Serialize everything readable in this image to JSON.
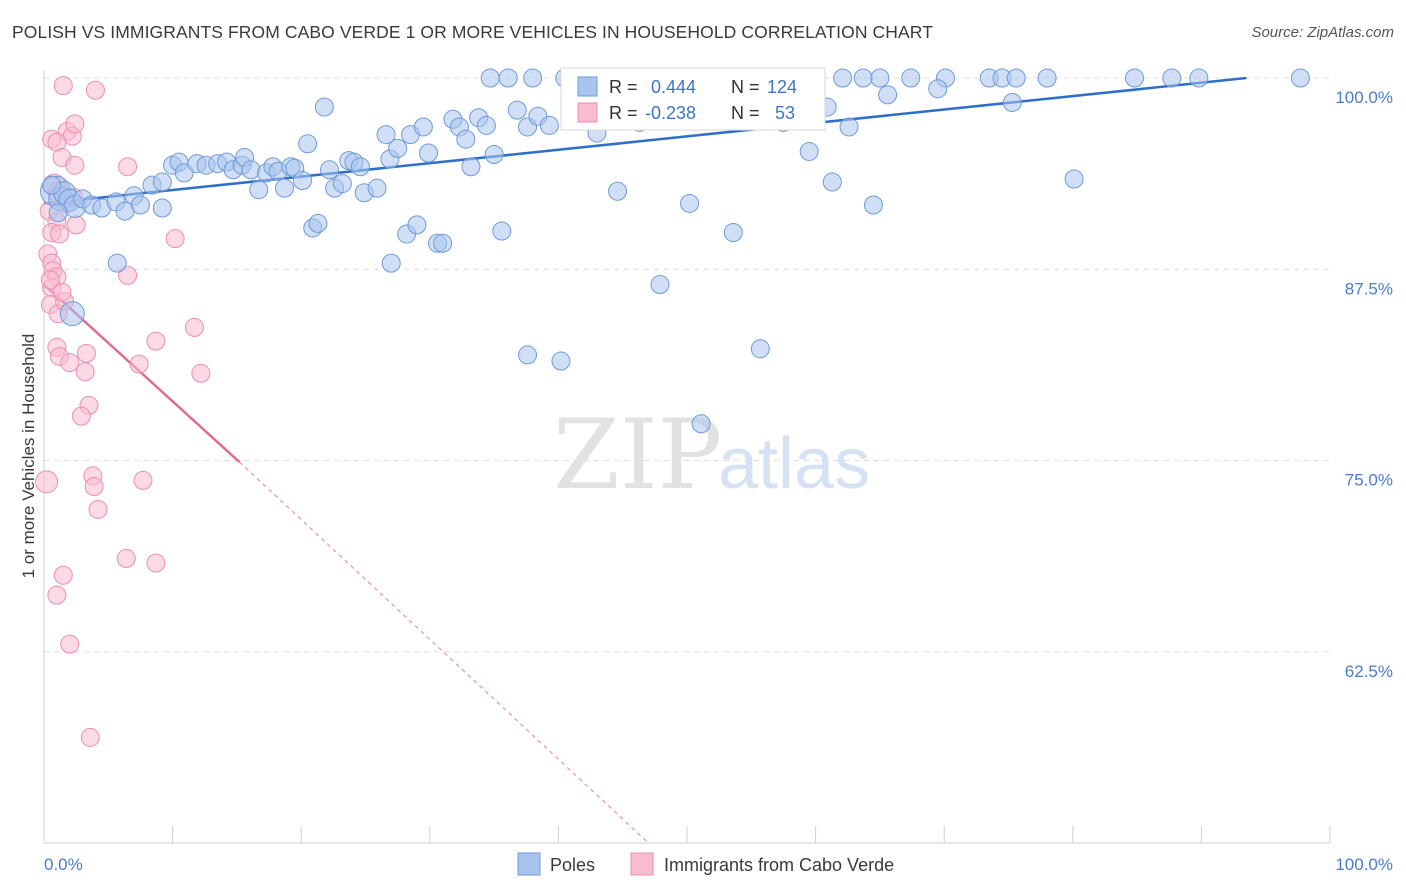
{
  "title": "POLISH VS IMMIGRANTS FROM CABO VERDE 1 OR MORE VEHICLES IN HOUSEHOLD CORRELATION CHART",
  "source": "Source: ZipAtlas.com",
  "watermark": {
    "zip": "ZIP",
    "atlas": "atlas"
  },
  "colors": {
    "blue_fill": "#a9c5ee",
    "blue_stroke": "#6f9ad8",
    "blue_line": "#2f6fcb",
    "pink_fill": "#f7bccf",
    "pink_stroke": "#eb8fae",
    "pink_line": "#e06b96",
    "grid": "#dcdcdc",
    "tick_text": "#4a7cc9"
  },
  "legend_stats": [
    {
      "r_label": "R =",
      "r_value": "0.444",
      "n_label": "N =",
      "n_value": "124"
    },
    {
      "r_label": "R =",
      "r_value": "-0.238",
      "n_label": "N =",
      "n_value": "53"
    }
  ],
  "chart_data": {
    "type": "scatter",
    "ylabel": "1 or more Vehicles in Household",
    "xlim": [
      0,
      100
    ],
    "ylim": [
      50,
      100
    ],
    "x_tick_labels": [
      "0.0%",
      "100.0%"
    ],
    "y_ticks": [
      62.5,
      75.0,
      87.5,
      100.0
    ],
    "y_tick_labels": [
      "62.5%",
      "75.0%",
      "87.5%",
      "100.0%"
    ],
    "grid": "horizontal dashed",
    "legend": "bottom-center",
    "series": [
      {
        "name": "Poles",
        "trend": {
          "x": [
            0,
            93.5
          ],
          "y": [
            91.8,
            100.0
          ]
        },
        "points": [
          [
            0.9,
            92.6,
            5
          ],
          [
            1.3,
            92.1,
            4
          ],
          [
            1.6,
            92.5,
            3
          ],
          [
            2.0,
            92.0,
            3
          ],
          [
            2.4,
            91.6,
            3
          ],
          [
            3.0,
            92.1,
            2
          ],
          [
            3.7,
            91.7,
            2
          ],
          [
            4.5,
            91.5,
            2
          ],
          [
            5.6,
            91.9,
            2
          ],
          [
            6.3,
            91.3,
            2
          ],
          [
            7.0,
            92.3,
            2
          ],
          [
            7.5,
            91.7,
            2
          ],
          [
            8.4,
            93.0,
            2
          ],
          [
            9.2,
            91.5,
            2
          ],
          [
            9.2,
            93.2,
            2
          ],
          [
            10.0,
            94.3,
            2
          ],
          [
            10.5,
            94.5,
            2
          ],
          [
            10.9,
            93.8,
            2
          ],
          [
            11.9,
            94.4,
            2
          ],
          [
            12.6,
            94.3,
            2
          ],
          [
            13.5,
            94.4,
            2
          ],
          [
            14.2,
            94.5,
            2
          ],
          [
            14.7,
            94.0,
            2
          ],
          [
            15.4,
            94.3,
            2
          ],
          [
            15.6,
            94.8,
            2
          ],
          [
            16.1,
            94.0,
            2
          ],
          [
            16.7,
            92.7,
            2
          ],
          [
            17.3,
            93.8,
            2
          ],
          [
            17.8,
            94.2,
            2
          ],
          [
            18.2,
            93.9,
            2
          ],
          [
            18.7,
            92.8,
            2
          ],
          [
            19.2,
            94.2,
            2
          ],
          [
            19.5,
            94.1,
            2
          ],
          [
            20.1,
            93.3,
            2
          ],
          [
            20.5,
            95.7,
            2
          ],
          [
            20.9,
            90.2,
            2
          ],
          [
            21.3,
            90.5,
            2
          ],
          [
            21.8,
            98.1,
            2
          ],
          [
            22.2,
            94.0,
            2
          ],
          [
            22.6,
            92.8,
            2
          ],
          [
            23.2,
            93.1,
            2
          ],
          [
            23.7,
            94.6,
            2
          ],
          [
            24.1,
            94.5,
            2
          ],
          [
            24.6,
            94.2,
            2
          ],
          [
            24.9,
            92.5,
            2
          ],
          [
            25.9,
            92.8,
            2
          ],
          [
            26.6,
            96.3,
            2
          ],
          [
            26.9,
            94.7,
            2
          ],
          [
            27.5,
            95.4,
            2
          ],
          [
            28.2,
            89.8,
            2
          ],
          [
            28.5,
            96.3,
            2
          ],
          [
            29.0,
            90.4,
            2
          ],
          [
            29.5,
            96.8,
            2
          ],
          [
            29.9,
            95.1,
            2
          ],
          [
            30.6,
            89.2,
            2
          ],
          [
            31.0,
            89.2,
            2
          ],
          [
            31.8,
            97.3,
            2
          ],
          [
            32.3,
            96.8,
            2
          ],
          [
            32.8,
            96.0,
            2
          ],
          [
            33.2,
            94.2,
            2
          ],
          [
            33.8,
            97.4,
            2
          ],
          [
            34.4,
            96.9,
            2
          ],
          [
            35.0,
            95.0,
            2
          ],
          [
            35.6,
            90.0,
            2
          ],
          [
            36.8,
            97.9,
            2
          ],
          [
            37.6,
            96.8,
            2
          ],
          [
            38.4,
            97.5,
            2
          ],
          [
            27.0,
            87.9,
            2
          ],
          [
            34.7,
            100.0,
            2
          ],
          [
            36.1,
            100.0,
            2
          ],
          [
            38.0,
            100.0,
            2
          ],
          [
            40.5,
            100.0,
            2
          ],
          [
            42.2,
            100.0,
            2
          ],
          [
            44.1,
            100.0,
            2
          ],
          [
            46.3,
            100.0,
            2
          ],
          [
            48.1,
            100.0,
            2
          ],
          [
            50.3,
            100.0,
            2
          ],
          [
            52.4,
            100.0,
            2
          ],
          [
            54.7,
            100.0,
            2
          ],
          [
            56.8,
            100.0,
            2
          ],
          [
            58.4,
            100.0,
            2
          ],
          [
            62.1,
            100.0,
            2
          ],
          [
            63.7,
            100.0,
            2
          ],
          [
            65.0,
            100.0,
            2
          ],
          [
            67.4,
            100.0,
            2
          ],
          [
            70.1,
            100.0,
            2
          ],
          [
            73.5,
            100.0,
            2
          ],
          [
            74.5,
            100.0,
            2
          ],
          [
            75.6,
            100.0,
            2
          ],
          [
            78.0,
            100.0,
            2
          ],
          [
            84.8,
            100.0,
            2
          ],
          [
            87.7,
            100.0,
            2
          ],
          [
            89.8,
            100.0,
            2
          ],
          [
            97.7,
            100.0,
            2
          ],
          [
            50.6,
            97.7,
            2
          ],
          [
            53.7,
            98.3,
            2
          ],
          [
            56.7,
            98.6,
            2
          ],
          [
            60.9,
            98.1,
            2
          ],
          [
            62.6,
            96.8,
            2
          ],
          [
            65.6,
            98.9,
            2
          ],
          [
            75.3,
            98.4,
            2
          ],
          [
            46.3,
            97.1,
            2
          ],
          [
            59.5,
            95.2,
            2
          ],
          [
            44.6,
            92.6,
            2
          ],
          [
            50.2,
            91.8,
            2
          ],
          [
            53.6,
            89.9,
            2
          ],
          [
            61.3,
            93.2,
            2
          ],
          [
            64.5,
            91.7,
            2
          ],
          [
            80.1,
            93.4,
            2
          ],
          [
            39.3,
            96.9,
            2
          ],
          [
            47.9,
            86.5,
            2
          ],
          [
            37.6,
            81.9,
            2
          ],
          [
            40.2,
            81.5,
            2
          ],
          [
            55.7,
            82.3,
            2
          ],
          [
            51.1,
            77.4,
            2
          ],
          [
            5.7,
            87.9,
            2
          ],
          [
            2.2,
            84.6,
            4
          ],
          [
            0.6,
            93.0,
            2
          ],
          [
            1.1,
            91.2,
            2
          ],
          [
            42.2,
            97.6,
            2
          ],
          [
            57.5,
            97.1,
            2
          ],
          [
            43.0,
            96.4,
            2
          ],
          [
            48.8,
            98.7,
            2
          ],
          [
            69.5,
            99.3,
            2
          ]
        ]
      },
      {
        "name": "Immigrants from Cabo Verde",
        "trend": {
          "x": [
            0,
            15.2
          ],
          "y": [
            86.5,
            74.9
          ]
        },
        "trend_dashed": {
          "x": [
            15.2,
            47.0
          ],
          "y": [
            74.9,
            50.0
          ]
        },
        "points": [
          [
            1.5,
            99.5,
            2
          ],
          [
            4.0,
            99.2,
            2
          ],
          [
            1.8,
            96.5,
            2
          ],
          [
            2.2,
            96.2,
            2
          ],
          [
            2.4,
            97.0,
            2
          ],
          [
            0.6,
            96.0,
            2
          ],
          [
            1.0,
            95.8,
            2
          ],
          [
            1.4,
            94.8,
            2
          ],
          [
            2.4,
            94.3,
            2
          ],
          [
            6.5,
            94.2,
            2
          ],
          [
            0.8,
            93.0,
            3
          ],
          [
            1.2,
            92.5,
            3
          ],
          [
            1.7,
            91.9,
            3
          ],
          [
            2.3,
            92.2,
            2
          ],
          [
            0.4,
            91.3,
            2
          ],
          [
            1.0,
            90.6,
            2
          ],
          [
            2.5,
            90.4,
            2
          ],
          [
            0.6,
            89.9,
            2
          ],
          [
            1.2,
            89.8,
            2
          ],
          [
            10.2,
            89.5,
            2
          ],
          [
            0.3,
            88.5,
            2
          ],
          [
            0.6,
            87.9,
            2
          ],
          [
            0.7,
            87.4,
            2
          ],
          [
            1.0,
            87.0,
            2
          ],
          [
            0.6,
            86.3,
            2
          ],
          [
            6.5,
            87.1,
            2
          ],
          [
            0.5,
            85.2,
            2
          ],
          [
            1.1,
            84.6,
            2
          ],
          [
            1.6,
            85.4,
            2
          ],
          [
            11.7,
            83.7,
            2
          ],
          [
            8.7,
            82.8,
            2
          ],
          [
            1.0,
            82.4,
            2
          ],
          [
            1.2,
            81.8,
            2
          ],
          [
            3.3,
            82.0,
            2
          ],
          [
            2.0,
            81.4,
            2
          ],
          [
            3.2,
            80.8,
            2
          ],
          [
            7.4,
            81.3,
            2
          ],
          [
            12.2,
            80.7,
            2
          ],
          [
            3.5,
            78.6,
            2
          ],
          [
            2.9,
            77.9,
            2
          ],
          [
            3.8,
            74.0,
            2
          ],
          [
            3.9,
            73.3,
            2
          ],
          [
            7.7,
            73.7,
            2
          ],
          [
            0.2,
            73.6,
            3
          ],
          [
            4.2,
            71.8,
            2
          ],
          [
            6.4,
            68.6,
            2
          ],
          [
            8.7,
            68.3,
            2
          ],
          [
            1.5,
            67.5,
            2
          ],
          [
            1.0,
            66.2,
            2
          ],
          [
            2.0,
            63.0,
            2
          ],
          [
            3.6,
            56.9,
            2
          ],
          [
            0.5,
            86.8,
            2
          ],
          [
            1.4,
            86.0,
            2
          ]
        ]
      }
    ]
  }
}
